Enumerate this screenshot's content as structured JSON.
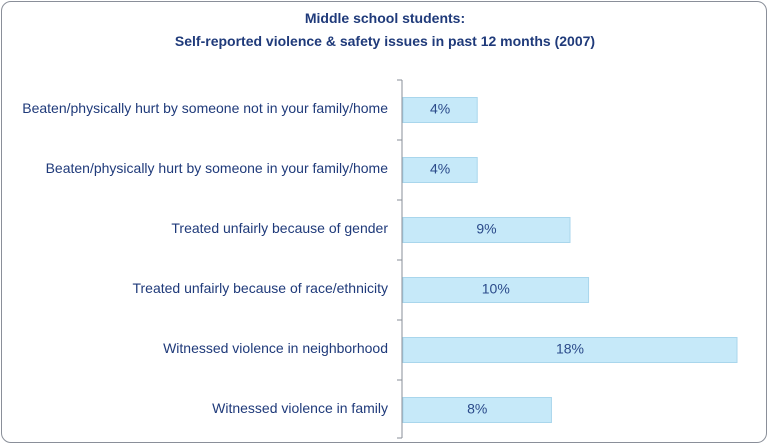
{
  "chart_data": {
    "type": "barh",
    "title": "Middle school students:",
    "subtitle": "Self-reported violence & safety issues in past 12 months (2007)",
    "categories": [
      "Beaten/physically hurt by someone not in your family/home",
      "Beaten/physically hurt by someone in your family/home",
      "Treated unfairly because of gender",
      "Treated unfairly because of race/ethnicity",
      "Witnessed violence in neighborhood",
      "Witnessed violence in family"
    ],
    "values": [
      4,
      4,
      9,
      10,
      18,
      8
    ],
    "value_labels": [
      "4%",
      "4%",
      "9%",
      "10%",
      "18%",
      "8%"
    ],
    "color": "#c6e9f9"
  }
}
